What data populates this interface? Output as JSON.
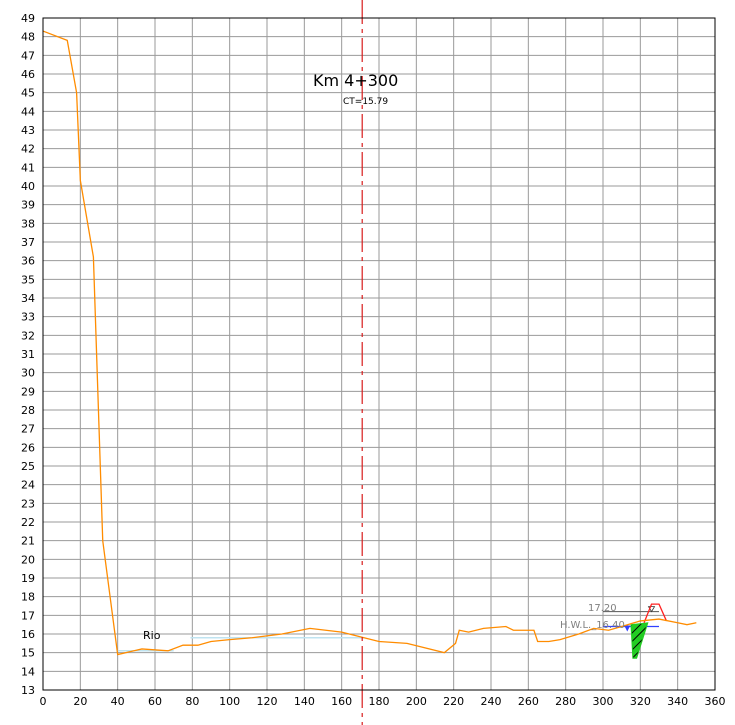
{
  "chart_data": {
    "type": "line",
    "title": "Km  4+300",
    "subtitle": "CT=15.79",
    "xlim": [
      0,
      360
    ],
    "ylim": [
      13,
      49
    ],
    "x_ticks": [
      0,
      20,
      40,
      60,
      80,
      100,
      120,
      140,
      160,
      180,
      200,
      220,
      240,
      260,
      280,
      300,
      320,
      340,
      360
    ],
    "y_ticks": [
      13,
      14,
      15,
      16,
      17,
      18,
      19,
      20,
      21,
      22,
      23,
      24,
      25,
      26,
      27,
      28,
      29,
      30,
      31,
      32,
      33,
      34,
      35,
      36,
      37,
      38,
      39,
      40,
      41,
      42,
      43,
      44,
      45,
      46,
      47,
      48,
      49
    ],
    "grid": true,
    "centerline_x": 171,
    "annotations": {
      "river": "Rio",
      "level_1": "17.20",
      "level_2": "H.W.L._16.40"
    },
    "series": [
      {
        "color": "#ff8c00",
        "x": [
          0,
          13,
          18,
          20,
          27,
          32,
          40,
          53,
          67,
          75,
          83,
          90,
          100,
          112,
          128,
          143,
          160,
          172,
          180,
          195,
          215,
          221,
          223,
          228,
          236,
          248,
          252,
          263,
          265,
          271,
          277,
          287,
          295,
          303,
          310,
          320,
          330,
          340,
          345,
          350
        ],
        "y": [
          48.3,
          47.8,
          45.0,
          40.3,
          36.2,
          21.0,
          14.9,
          15.2,
          15.1,
          15.4,
          15.4,
          15.6,
          15.7,
          15.8,
          16.0,
          16.3,
          16.1,
          15.8,
          15.6,
          15.5,
          15.0,
          15.5,
          16.2,
          16.1,
          16.3,
          16.4,
          16.2,
          16.2,
          15.6,
          15.6,
          15.7,
          16.0,
          16.3,
          16.2,
          16.4,
          16.7,
          16.8,
          16.6,
          16.5,
          16.6
        ]
      }
    ],
    "water_lines": [
      {
        "color": "#bfe3f0",
        "x": [
          40,
          70
        ],
        "y": 15.1
      },
      {
        "color": "#bfe3f0",
        "x": [
          79,
          172
        ],
        "y": 15.8
      }
    ],
    "hwl_line": {
      "color": "#3040ff",
      "x": [
        300,
        330
      ],
      "y": 16.4
    },
    "level_line": {
      "color": "#555555",
      "x": [
        300,
        330
      ],
      "y": 17.2
    },
    "levee": {
      "color": "#ff2020",
      "x": [
        322,
        326,
        330,
        334
      ],
      "y": [
        16.6,
        17.6,
        17.6,
        16.7
      ]
    },
    "cut": {
      "color": "#22cc22",
      "x": [
        315,
        324,
        318,
        316
      ],
      "y": [
        16.5,
        16.6,
        14.7,
        14.7
      ]
    }
  }
}
